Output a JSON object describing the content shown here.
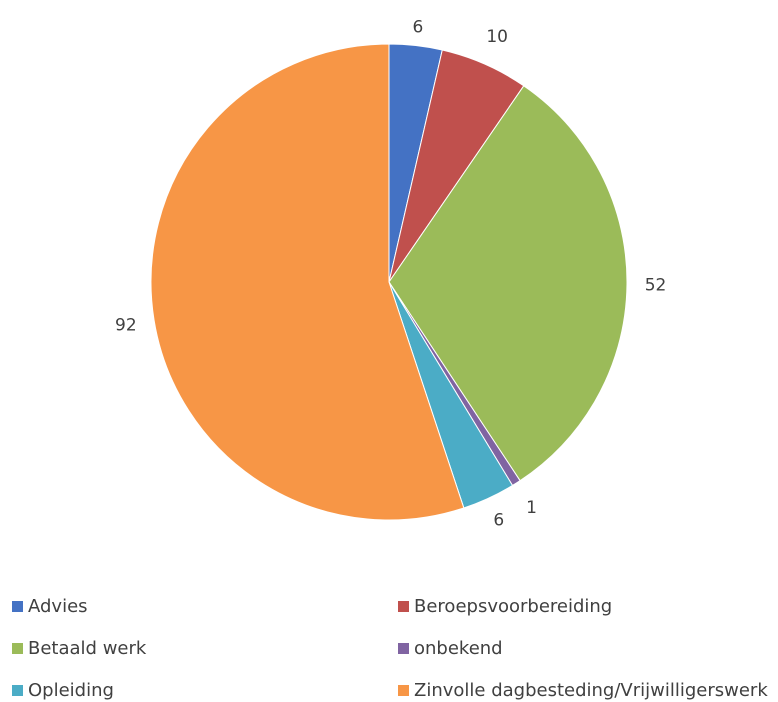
{
  "chart_data": {
    "type": "pie",
    "title": "",
    "start_angle_deg": 0,
    "direction": "clockwise",
    "legend_position": "bottom",
    "slices": [
      {
        "label": "Advies",
        "value": 6,
        "color": "#4472C4"
      },
      {
        "label": "Beroepsvoorbereiding",
        "value": 10,
        "color": "#C0504D"
      },
      {
        "label": "Betaald werk",
        "value": 52,
        "color": "#9BBB59"
      },
      {
        "label": "onbekend",
        "value": 1,
        "color": "#8064A2"
      },
      {
        "label": "Opleiding",
        "value": 6,
        "color": "#4BACC6"
      },
      {
        "label": "Zinvolle dagbesteding/Vrijwilligerswerk",
        "value": 92,
        "color": "#F79646"
      }
    ]
  }
}
